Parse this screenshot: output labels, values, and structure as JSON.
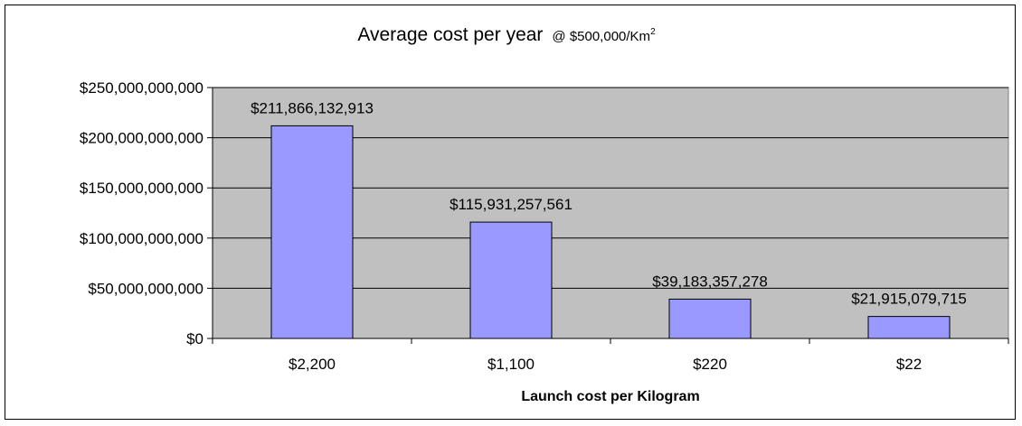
{
  "chart_data": {
    "type": "bar",
    "title": "Average cost per year",
    "subtitle_prefix": "@ $500,000/Km",
    "subtitle_superscript": "2",
    "xlabel": "Launch cost per Kilogram",
    "ylabel": "",
    "categories": [
      "$2,200",
      "$1,100",
      "$220",
      "$22"
    ],
    "values": [
      211866132913,
      115931257561,
      39183357278,
      21915079715
    ],
    "data_labels": [
      "$211,866,132,913",
      "$115,931,257,561",
      "$39,183,357,278",
      "$21,915,079,715"
    ],
    "ylim": [
      0,
      250000000000
    ],
    "yticks": [
      0,
      50000000000,
      100000000000,
      150000000000,
      200000000000,
      250000000000
    ],
    "ytick_labels": [
      "$0",
      "$50,000,000,000",
      "$100,000,000,000",
      "$150,000,000,000",
      "$200,000,000,000",
      "$250,000,000,000"
    ],
    "grid": true,
    "legend": "none",
    "colors": {
      "plot_background": "#c0c0c0",
      "bar_fill": "#9999ff",
      "bar_stroke": "#000000",
      "gridline": "#000000"
    }
  }
}
